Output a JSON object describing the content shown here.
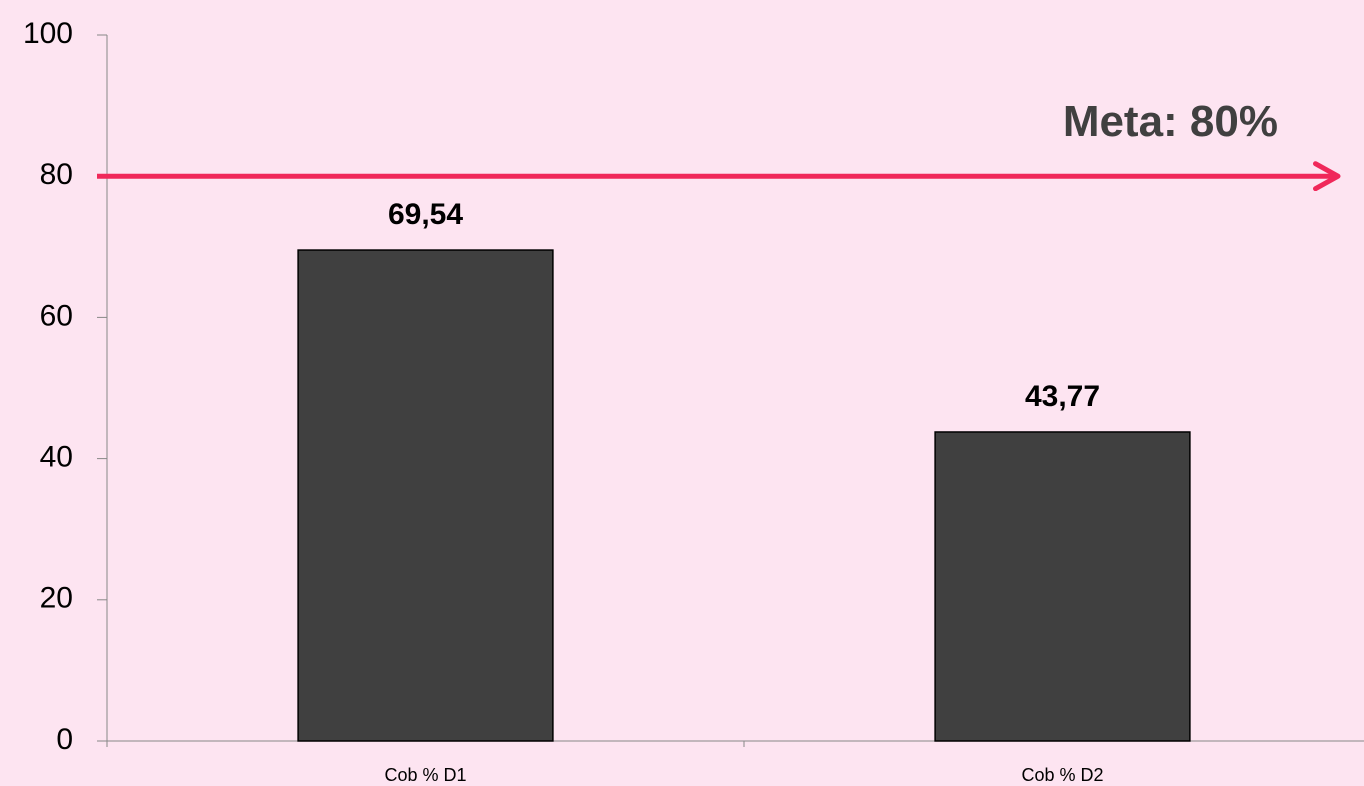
{
  "chart_data": {
    "type": "bar",
    "categories": [
      "Cob % D1",
      "Cob % D2"
    ],
    "values": [
      69.54,
      43.77
    ],
    "value_labels": [
      "69,54",
      "43,77"
    ],
    "color": "#404040",
    "ylim": [
      0,
      100
    ],
    "yticks": [
      0,
      20,
      40,
      60,
      80,
      100
    ],
    "annotation": "Meta: 80%",
    "target": 80,
    "target_color": "#f0285a"
  }
}
